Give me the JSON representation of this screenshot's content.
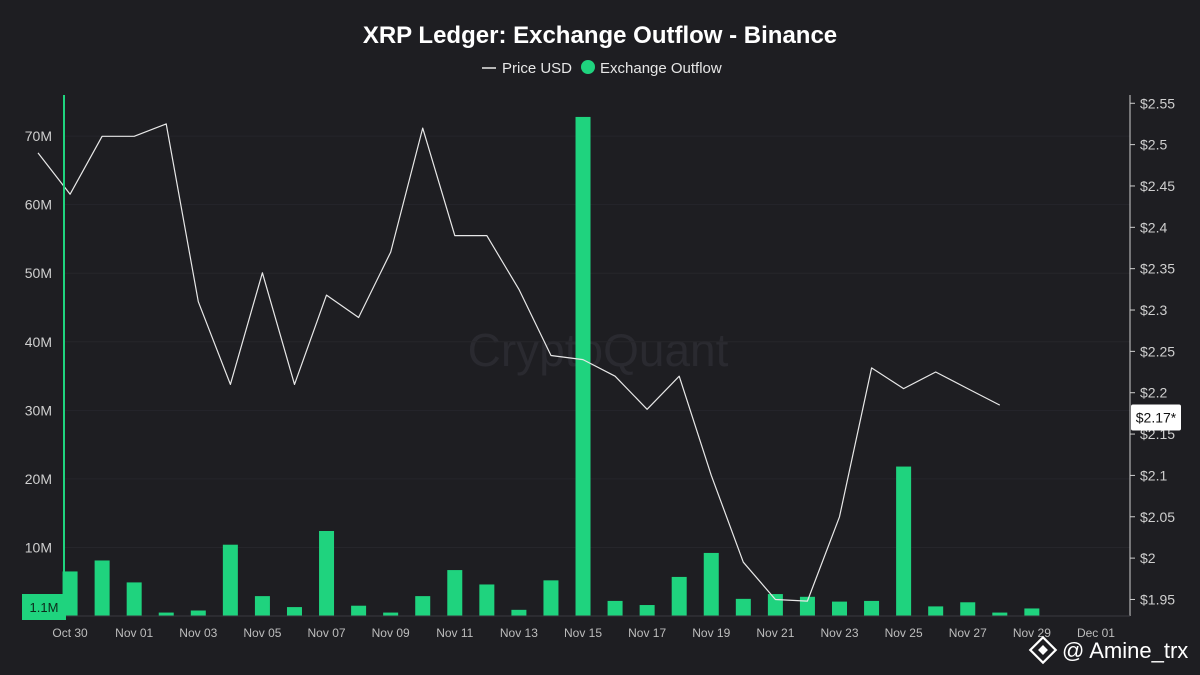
{
  "chart_data": {
    "type": "bar",
    "title": "XRP Ledger: Exchange Outflow - Binance",
    "legend": {
      "items": [
        {
          "label": "Price USD",
          "kind": "line",
          "color": "#e8e8e8"
        },
        {
          "label": "Exchange Outflow",
          "kind": "dot",
          "color": "#1fd37e"
        }
      ],
      "position": "top-center"
    },
    "x": [
      "Oct 29",
      "Oct 30",
      "Oct 31",
      "Nov 01",
      "Nov 02",
      "Nov 03",
      "Nov 04",
      "Nov 05",
      "Nov 06",
      "Nov 07",
      "Nov 08",
      "Nov 09",
      "Nov 10",
      "Nov 11",
      "Nov 12",
      "Nov 13",
      "Nov 14",
      "Nov 15",
      "Nov 16",
      "Nov 17",
      "Nov 18",
      "Nov 19",
      "Nov 20",
      "Nov 21",
      "Nov 22",
      "Nov 23",
      "Nov 24",
      "Nov 25",
      "Nov 26",
      "Nov 27",
      "Nov 28",
      "Nov 29",
      "Nov 30",
      "Dec 01"
    ],
    "x_tick_labels": [
      "Oct 30",
      "Nov 01",
      "Nov 03",
      "Nov 05",
      "Nov 07",
      "Nov 09",
      "Nov 11",
      "Nov 13",
      "Nov 15",
      "Nov 17",
      "Nov 19",
      "Nov 21",
      "Nov 23",
      "Nov 25",
      "Nov 27",
      "Nov 29",
      "Dec 01"
    ],
    "series": [
      {
        "name": "Exchange Outflow",
        "type": "bar",
        "axis": "left",
        "color": "#1fd37e",
        "values": [
          null,
          6.5,
          8.1,
          4.9,
          0.5,
          0.8,
          10.4,
          2.9,
          1.3,
          12.4,
          1.5,
          0.5,
          2.9,
          6.7,
          4.6,
          0.9,
          5.2,
          72.8,
          2.2,
          1.6,
          5.7,
          9.2,
          2.5,
          3.2,
          2.8,
          2.1,
          2.2,
          21.8,
          1.4,
          2.0,
          0.5,
          1.1,
          null,
          null
        ]
      },
      {
        "name": "Price USD",
        "type": "line",
        "axis": "right",
        "color": "#e8e8e8",
        "values": [
          2.49,
          2.44,
          2.51,
          2.51,
          2.525,
          2.31,
          2.21,
          2.345,
          2.21,
          2.318,
          2.291,
          2.37,
          2.52,
          2.39,
          2.39,
          2.325,
          2.245,
          2.24,
          2.22,
          2.18,
          2.22,
          2.1,
          1.995,
          1.95,
          1.948,
          2.05,
          2.23,
          2.205,
          2.225,
          2.205,
          2.185,
          null,
          null,
          null
        ]
      }
    ],
    "y_left": {
      "ticks": [
        10,
        20,
        30,
        40,
        50,
        60,
        70
      ],
      "tick_labels": [
        "10M",
        "20M",
        "30M",
        "40M",
        "50M",
        "60M",
        "70M"
      ],
      "range": [
        0,
        76
      ],
      "unit": "M"
    },
    "y_right": {
      "ticks": [
        1.95,
        2.0,
        2.05,
        2.1,
        2.15,
        2.2,
        2.25,
        2.3,
        2.35,
        2.4,
        2.45,
        2.5,
        2.55
      ],
      "tick_labels": [
        "$1.95",
        "$2",
        "$2.05",
        "$2.1",
        "$2.15",
        "$2.2",
        "$2.25",
        "$2.3",
        "$2.35",
        "$2.4",
        "$2.45",
        "$2.5",
        "$2.55"
      ],
      "range": [
        1.93,
        2.56
      ]
    },
    "last_price_label": "$2.17*",
    "left_marker_label": "1.1M",
    "grid": true,
    "watermark": "CryptoQuant"
  },
  "credit": {
    "text": "@ Amine_trx",
    "icon": "binance-logo-icon"
  }
}
